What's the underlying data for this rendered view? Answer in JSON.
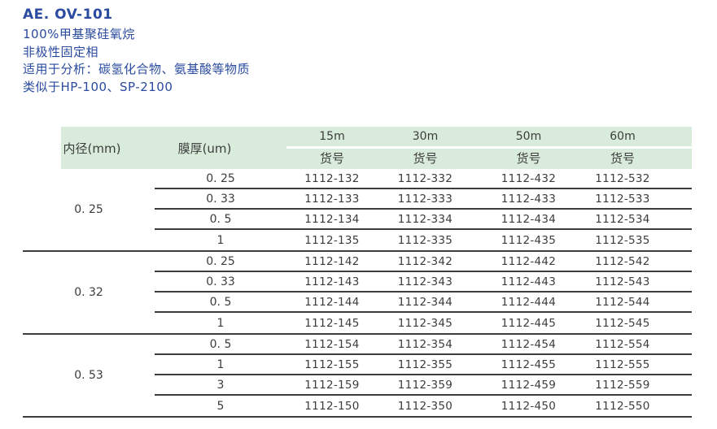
{
  "header": {
    "title": "AE. OV-101",
    "lines": [
      "100%甲基聚硅氧烷",
      "非极性固定相",
      "适用于分析：碳氢化合物、氨基酸等物质",
      "类似于HP-100、SP-2100"
    ],
    "text_color": "#2a4b9f"
  },
  "table": {
    "header_bg": "#d9ecdb",
    "line_color": "#3c3c3c",
    "col_id_label": "内径(mm)",
    "col_film_label": "膜厚(um)",
    "length_columns": [
      "15m",
      "30m",
      "50m",
      "60m"
    ],
    "part_label": "货号",
    "groups": [
      {
        "id": "0. 25",
        "rows": [
          {
            "film": "0. 25",
            "parts": [
              "1112-132",
              "1112-332",
              "1112-432",
              "1112-532"
            ]
          },
          {
            "film": "0. 33",
            "parts": [
              "1112-133",
              "1112-333",
              "1112-433",
              "1112-533"
            ]
          },
          {
            "film": "0. 5",
            "parts": [
              "1112-134",
              "1112-334",
              "1112-434",
              "1112-534"
            ]
          },
          {
            "film": "1",
            "parts": [
              "1112-135",
              "1112-335",
              "1112-435",
              "1112-535"
            ]
          }
        ]
      },
      {
        "id": "0. 32",
        "rows": [
          {
            "film": "0. 25",
            "parts": [
              "1112-142",
              "1112-342",
              "1112-442",
              "1112-542"
            ]
          },
          {
            "film": "0. 33",
            "parts": [
              "1112-143",
              "1112-343",
              "1112-443",
              "1112-543"
            ]
          },
          {
            "film": "0. 5",
            "parts": [
              "1112-144",
              "1112-344",
              "1112-444",
              "1112-544"
            ]
          },
          {
            "film": "1",
            "parts": [
              "1112-145",
              "1112-345",
              "1112-445",
              "1112-545"
            ]
          }
        ]
      },
      {
        "id": "0. 53",
        "rows": [
          {
            "film": "0. 5",
            "parts": [
              "1112-154",
              "1112-354",
              "1112-454",
              "1112-554"
            ]
          },
          {
            "film": "1",
            "parts": [
              "1112-155",
              "1112-355",
              "1112-455",
              "1112-555"
            ]
          },
          {
            "film": "3",
            "parts": [
              "1112-159",
              "1112-359",
              "1112-459",
              "1112-559"
            ]
          },
          {
            "film": "5",
            "parts": [
              "1112-150",
              "1112-350",
              "1112-450",
              "1112-550"
            ]
          }
        ]
      }
    ]
  }
}
